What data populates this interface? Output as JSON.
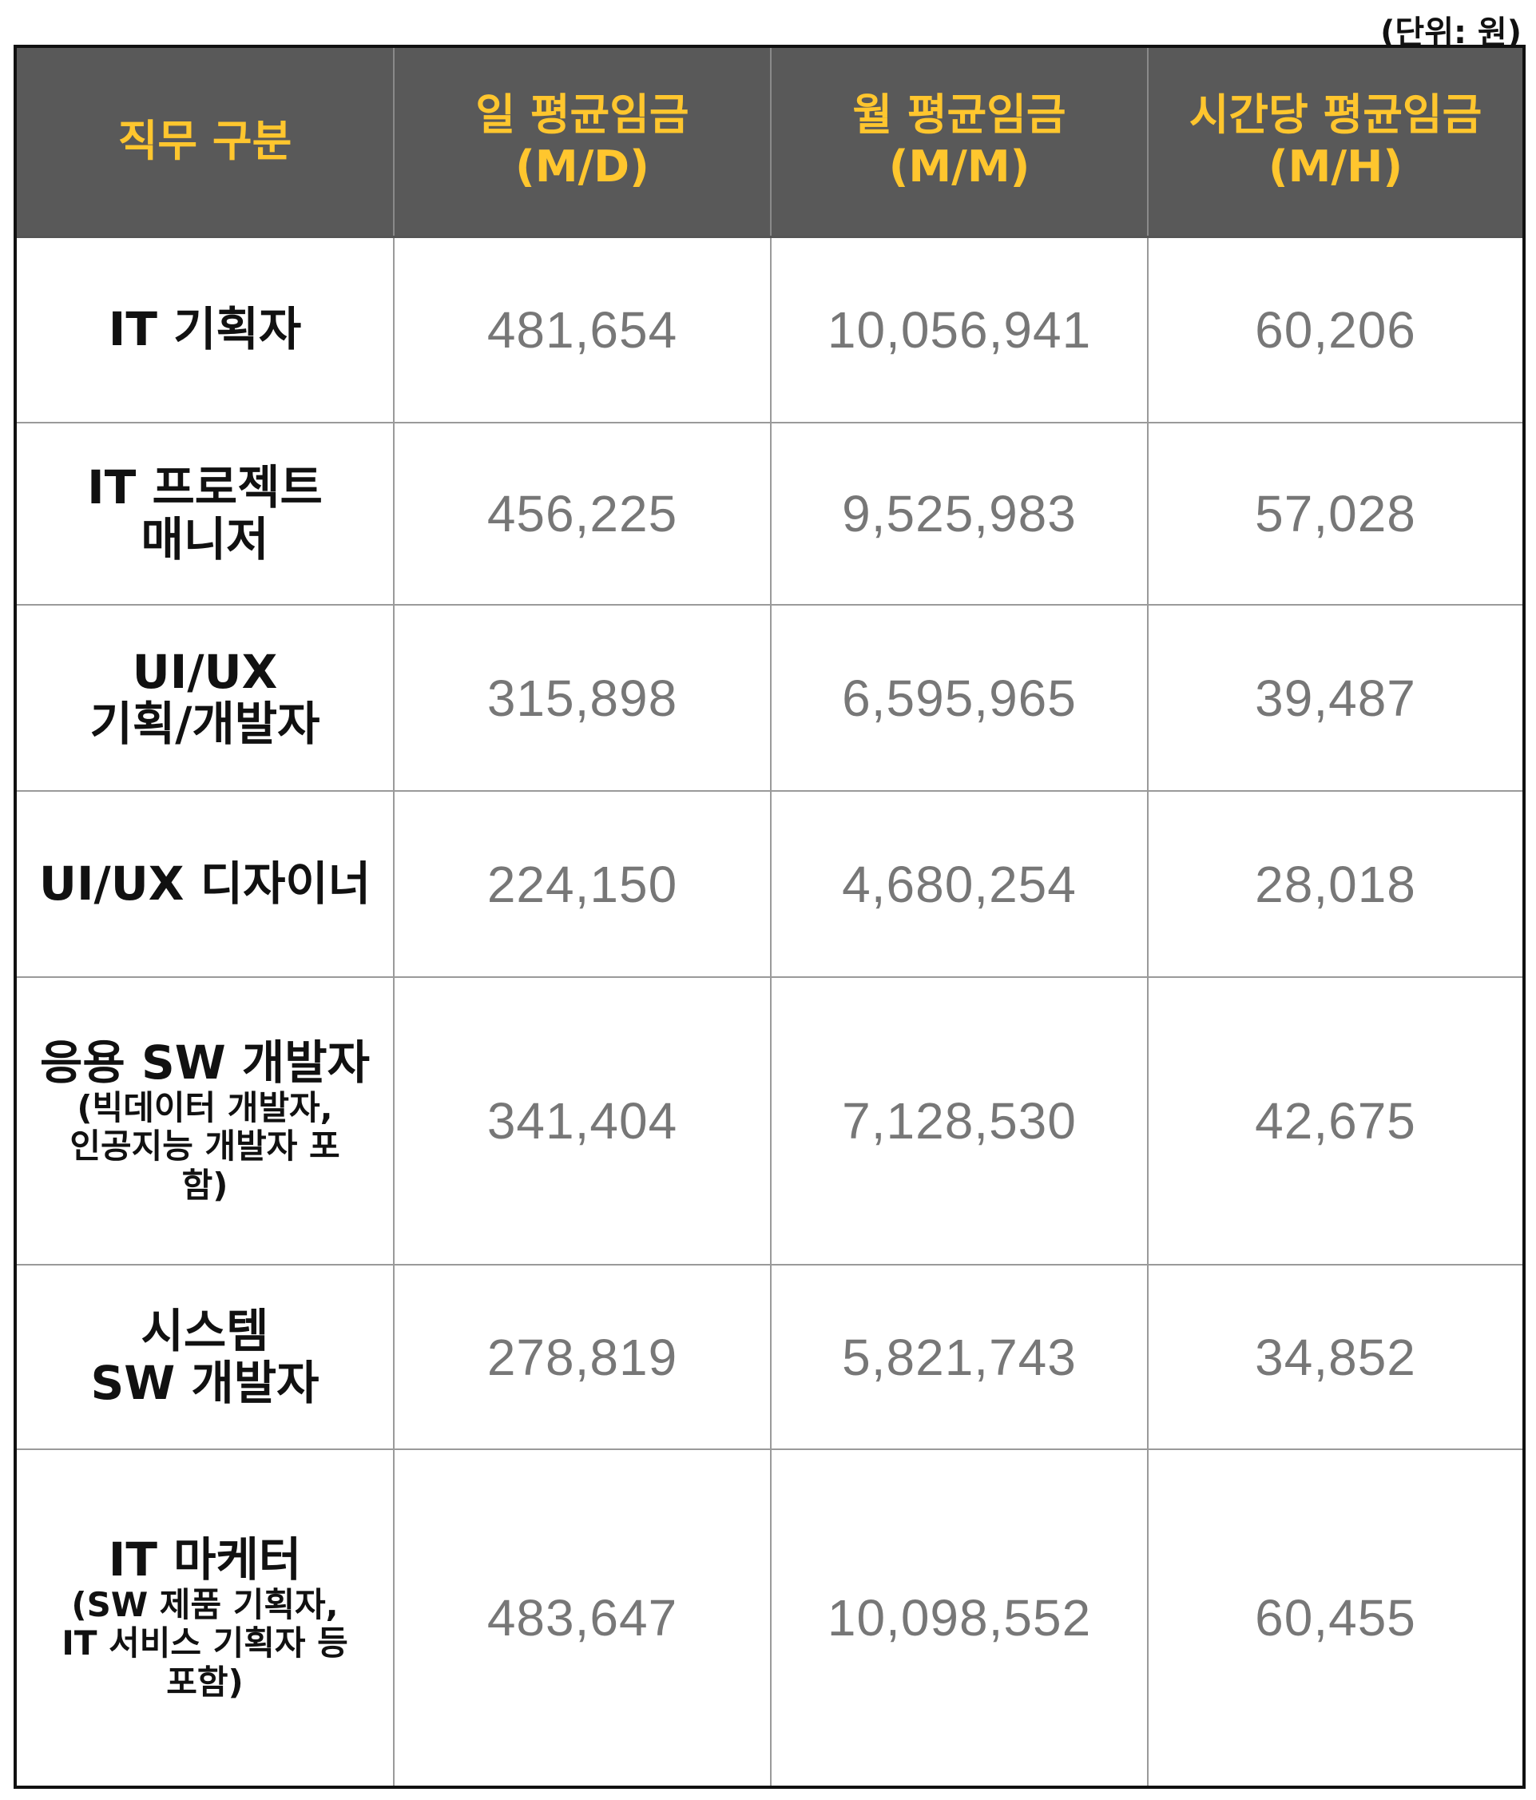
{
  "unit_note": "(단위: 원)",
  "table": {
    "headers": [
      {
        "line1": "직무 구분",
        "line2": ""
      },
      {
        "line1": "일 평균임금",
        "line2": "(M/D)"
      },
      {
        "line1": "월 평균임금",
        "line2": "(M/M)"
      },
      {
        "line1": "시간당 평균임금",
        "line2": "(M/H)"
      }
    ],
    "rows": [
      {
        "role_lines": [
          "IT 기획자"
        ],
        "sub_lines": [],
        "daily": "481,654",
        "monthly": "10,056,941",
        "hourly": "60,206"
      },
      {
        "role_lines": [
          "IT 프로젝트",
          "매니저"
        ],
        "sub_lines": [],
        "daily": "456,225",
        "monthly": "9,525,983",
        "hourly": "57,028"
      },
      {
        "role_lines": [
          "UI/UX",
          "기획/개발자"
        ],
        "sub_lines": [],
        "daily": "315,898",
        "monthly": "6,595,965",
        "hourly": "39,487"
      },
      {
        "role_lines": [
          "UI/UX 디자이너"
        ],
        "sub_lines": [],
        "daily": "224,150",
        "monthly": "4,680,254",
        "hourly": "28,018"
      },
      {
        "role_lines": [
          "응용 SW 개발자"
        ],
        "sub_lines": [
          "(빅데이터 개발자,",
          "인공지능 개발자 포",
          "함)"
        ],
        "daily": "341,404",
        "monthly": "7,128,530",
        "hourly": "42,675"
      },
      {
        "role_lines": [
          "시스템",
          "SW 개발자"
        ],
        "sub_lines": [],
        "daily": "278,819",
        "monthly": "5,821,743",
        "hourly": "34,852"
      },
      {
        "role_lines": [
          "IT 마케터"
        ],
        "sub_lines": [
          "(SW 제품 기획자,",
          "IT 서비스 기획자 등",
          "포함)"
        ],
        "daily": "483,647",
        "monthly": "10,098,552",
        "hourly": "60,455"
      }
    ]
  }
}
